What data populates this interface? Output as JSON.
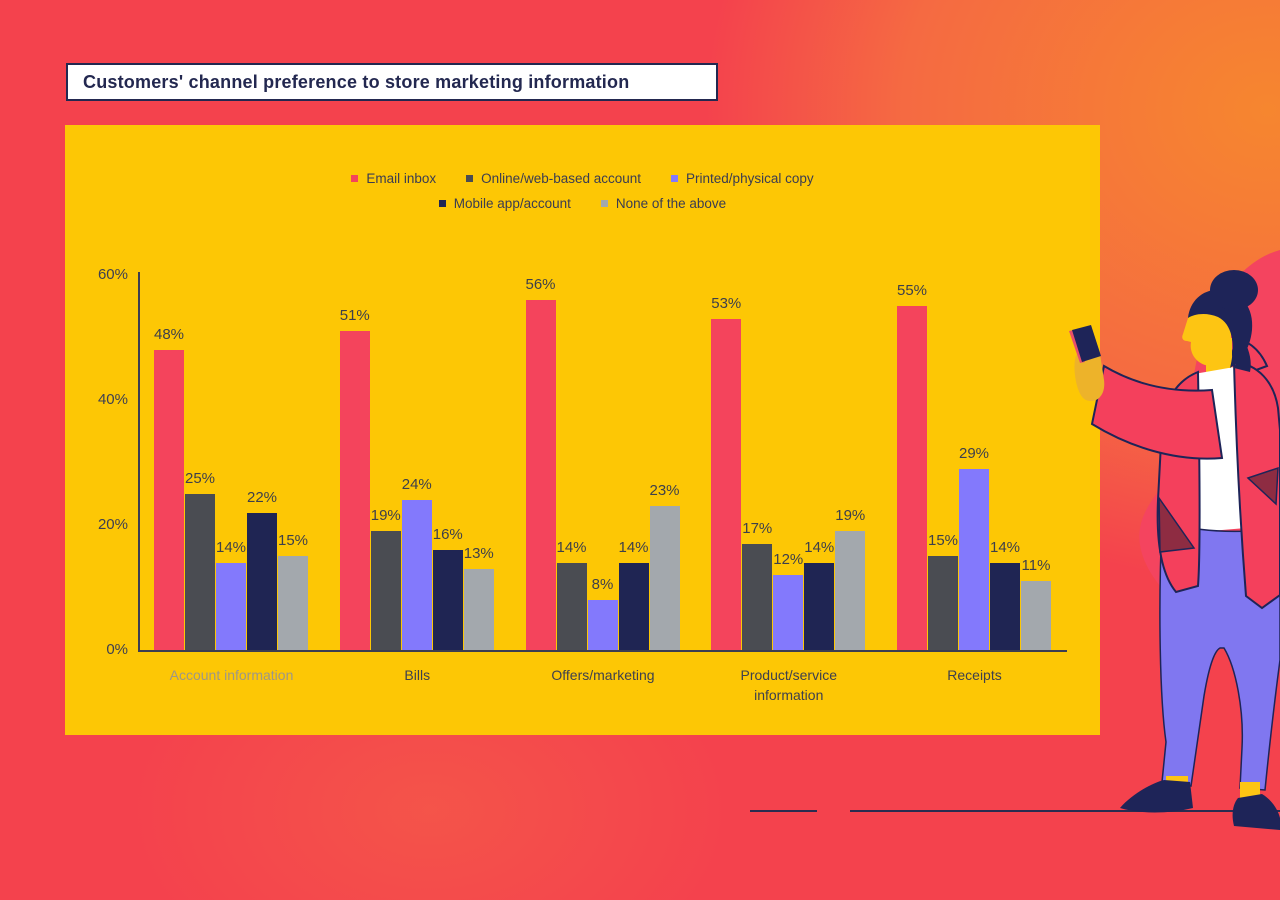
{
  "title": {
    "text": "Customers' channel preference to store marketing information"
  },
  "chart_data": {
    "type": "bar",
    "title": "Customers' channel preference to store marketing information",
    "categories": [
      "Account information",
      "Bills",
      "Offers/marketing",
      "Product/service information",
      "Receipts"
    ],
    "series": [
      {
        "name": "Email inbox",
        "color": "#f4445c",
        "values": [
          48,
          51,
          56,
          53,
          55
        ]
      },
      {
        "name": "Online/web-based account",
        "color": "#4a4c52",
        "values": [
          25,
          19,
          14,
          17,
          15
        ]
      },
      {
        "name": "Printed/physical copy",
        "color": "#8379fc",
        "values": [
          14,
          24,
          8,
          12,
          29
        ]
      },
      {
        "name": "Mobile app/account",
        "color": "#1f2553",
        "values": [
          22,
          16,
          14,
          14,
          14
        ]
      },
      {
        "name": "None of the above",
        "color": "#a3a8ad",
        "values": [
          15,
          13,
          23,
          19,
          11
        ]
      }
    ],
    "ylim": [
      0,
      60
    ],
    "yticks": [
      0,
      20,
      40,
      60
    ],
    "ytick_labels": [
      "0%",
      "20%",
      "40%",
      "60%"
    ],
    "value_suffix": "%",
    "bar_value_labels": true,
    "grid": false,
    "legend_position": "top-center",
    "legend_rows": [
      3,
      2
    ],
    "muted_categories": [
      0
    ]
  },
  "colors": {
    "background_red": "#f4424d",
    "background_orange": "#f6862f",
    "panel_yellow": "#fdc705",
    "axis": "#3c3d52",
    "text_dark": "#3d3f4b",
    "title_navy": "#232850",
    "illustration_navy": "#1e2458",
    "illustration_skin": "#fdc513",
    "illustration_jacket": "#f4405c",
    "illustration_pants": "#8077f0",
    "illustration_accent": "#8e2c42"
  },
  "illustration": {
    "name": "woman-walking-holding-phone"
  }
}
